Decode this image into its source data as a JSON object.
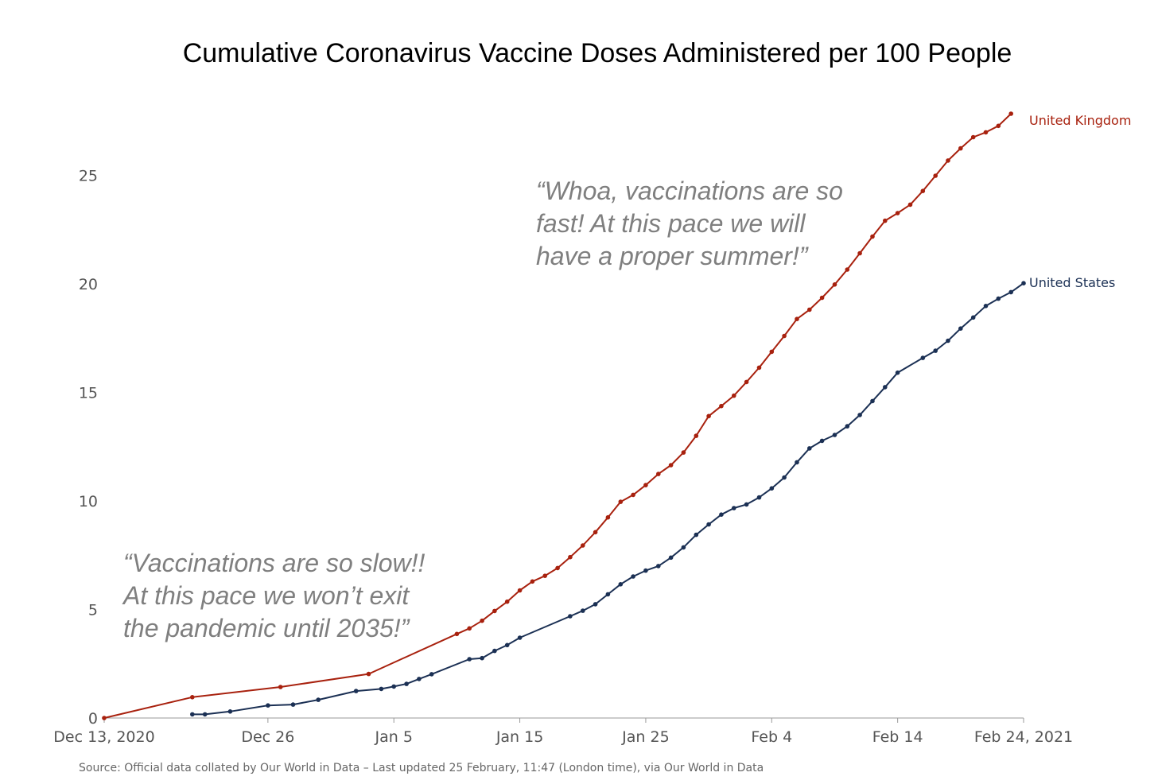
{
  "chart_data": {
    "type": "line",
    "title": "Cumulative Coronavirus Vaccine Doses Administered per 100 People",
    "x_ticks": [
      {
        "date": "2020-12-13",
        "label": "Dec 13, 2020"
      },
      {
        "date": "2020-12-26",
        "label": "Dec 26"
      },
      {
        "date": "2021-01-05",
        "label": "Jan 5"
      },
      {
        "date": "2021-01-15",
        "label": "Jan 15"
      },
      {
        "date": "2021-01-25",
        "label": "Jan 25"
      },
      {
        "date": "2021-02-04",
        "label": "Feb 4"
      },
      {
        "date": "2021-02-14",
        "label": "Feb 14"
      },
      {
        "date": "2021-02-24",
        "label": "Feb 24, 2021"
      }
    ],
    "y_ticks": [
      0,
      5,
      10,
      15,
      20,
      25
    ],
    "xlim": [
      "2020-12-13",
      "2021-02-24"
    ],
    "ylim": [
      0,
      28
    ],
    "grid": false,
    "series": [
      {
        "name": "United Kingdom",
        "color": "#a8210e",
        "points": [
          [
            "2020-12-13",
            0.0
          ],
          [
            "2020-12-20",
            0.96
          ],
          [
            "2020-12-27",
            1.43
          ],
          [
            "2021-01-03",
            2.03
          ],
          [
            "2021-01-10",
            3.87
          ],
          [
            "2021-01-11",
            4.13
          ],
          [
            "2021-01-12",
            4.48
          ],
          [
            "2021-01-13",
            4.93
          ],
          [
            "2021-01-14",
            5.36
          ],
          [
            "2021-01-15",
            5.88
          ],
          [
            "2021-01-16",
            6.29
          ],
          [
            "2021-01-17",
            6.55
          ],
          [
            "2021-01-18",
            6.91
          ],
          [
            "2021-01-19",
            7.41
          ],
          [
            "2021-01-20",
            7.95
          ],
          [
            "2021-01-21",
            8.56
          ],
          [
            "2021-01-22",
            9.24
          ],
          [
            "2021-01-23",
            9.96
          ],
          [
            "2021-01-24",
            10.28
          ],
          [
            "2021-01-25",
            10.73
          ],
          [
            "2021-01-26",
            11.24
          ],
          [
            "2021-01-27",
            11.65
          ],
          [
            "2021-01-28",
            12.23
          ],
          [
            "2021-01-29",
            13.0
          ],
          [
            "2021-01-30",
            13.91
          ],
          [
            "2021-01-31",
            14.37
          ],
          [
            "2021-02-01",
            14.85
          ],
          [
            "2021-02-02",
            15.48
          ],
          [
            "2021-02-03",
            16.14
          ],
          [
            "2021-02-04",
            16.87
          ],
          [
            "2021-02-05",
            17.6
          ],
          [
            "2021-02-06",
            18.38
          ],
          [
            "2021-02-07",
            18.81
          ],
          [
            "2021-02-08",
            19.36
          ],
          [
            "2021-02-09",
            19.97
          ],
          [
            "2021-02-10",
            20.66
          ],
          [
            "2021-02-11",
            21.41
          ],
          [
            "2021-02-12",
            22.18
          ],
          [
            "2021-02-13",
            22.91
          ],
          [
            "2021-02-14",
            23.26
          ],
          [
            "2021-02-15",
            23.65
          ],
          [
            "2021-02-16",
            24.28
          ],
          [
            "2021-02-17",
            24.98
          ],
          [
            "2021-02-18",
            25.68
          ],
          [
            "2021-02-19",
            26.24
          ],
          [
            "2021-02-20",
            26.76
          ],
          [
            "2021-02-21",
            26.98
          ],
          [
            "2021-02-22",
            27.28
          ],
          [
            "2021-02-23",
            27.84
          ]
        ]
      },
      {
        "name": "United States",
        "color": "#1b3054",
        "points": [
          [
            "2020-12-20",
            0.17
          ],
          [
            "2020-12-21",
            0.17
          ],
          [
            "2020-12-23",
            0.3
          ],
          [
            "2020-12-26",
            0.58
          ],
          [
            "2020-12-28",
            0.62
          ],
          [
            "2020-12-30",
            0.84
          ],
          [
            "2021-01-02",
            1.24
          ],
          [
            "2021-01-04",
            1.34
          ],
          [
            "2021-01-05",
            1.45
          ],
          [
            "2021-01-06",
            1.57
          ],
          [
            "2021-01-07",
            1.8
          ],
          [
            "2021-01-08",
            2.02
          ],
          [
            "2021-01-11",
            2.71
          ],
          [
            "2021-01-12",
            2.76
          ],
          [
            "2021-01-13",
            3.09
          ],
          [
            "2021-01-14",
            3.36
          ],
          [
            "2021-01-15",
            3.7
          ],
          [
            "2021-01-19",
            4.69
          ],
          [
            "2021-01-20",
            4.94
          ],
          [
            "2021-01-21",
            5.24
          ],
          [
            "2021-01-22",
            5.7
          ],
          [
            "2021-01-23",
            6.16
          ],
          [
            "2021-01-24",
            6.52
          ],
          [
            "2021-01-25",
            6.79
          ],
          [
            "2021-01-26",
            7.0
          ],
          [
            "2021-01-27",
            7.39
          ],
          [
            "2021-01-28",
            7.86
          ],
          [
            "2021-01-29",
            8.44
          ],
          [
            "2021-01-30",
            8.92
          ],
          [
            "2021-01-31",
            9.37
          ],
          [
            "2021-02-01",
            9.67
          ],
          [
            "2021-02-02",
            9.84
          ],
          [
            "2021-02-03",
            10.16
          ],
          [
            "2021-02-04",
            10.58
          ],
          [
            "2021-02-05",
            11.08
          ],
          [
            "2021-02-06",
            11.78
          ],
          [
            "2021-02-07",
            12.42
          ],
          [
            "2021-02-08",
            12.77
          ],
          [
            "2021-02-09",
            13.04
          ],
          [
            "2021-02-10",
            13.44
          ],
          [
            "2021-02-11",
            13.96
          ],
          [
            "2021-02-12",
            14.6
          ],
          [
            "2021-02-13",
            15.24
          ],
          [
            "2021-02-14",
            15.91
          ],
          [
            "2021-02-16",
            16.59
          ],
          [
            "2021-02-17",
            16.92
          ],
          [
            "2021-02-18",
            17.38
          ],
          [
            "2021-02-19",
            17.94
          ],
          [
            "2021-02-20",
            18.45
          ],
          [
            "2021-02-21",
            18.98
          ],
          [
            "2021-02-22",
            19.32
          ],
          [
            "2021-02-23",
            19.62
          ],
          [
            "2021-02-24",
            20.03
          ]
        ]
      }
    ],
    "annotations": [
      {
        "lines": [
          "“Vaccinations are so slow!!",
          "At this pace we won’t exit",
          "the pandemic until 2035!”"
        ]
      },
      {
        "lines": [
          "“Whoa, vaccinations are so",
          "fast! At this pace we will",
          "have a proper summer!”"
        ]
      }
    ],
    "source": "Source: Official data collated by Our World in Data – Last updated 25 February, 11:47 (London time), via Our World in Data"
  }
}
